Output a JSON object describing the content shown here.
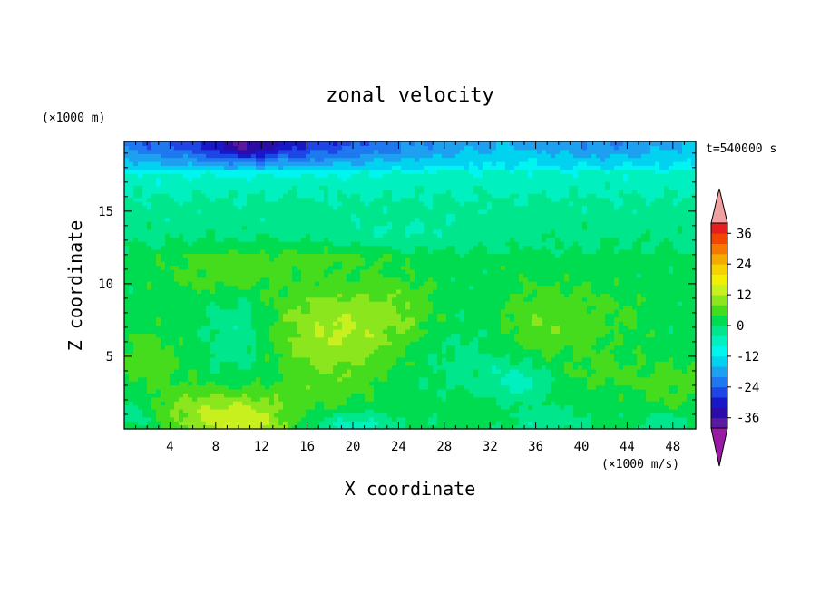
{
  "chart_data": {
    "type": "heatmap",
    "title": "zonal velocity",
    "xlabel": "X coordinate",
    "ylabel": "Z coordinate",
    "x_unit": "(×1000 m/s)",
    "y_unit": "(×1000 m)",
    "time_label": "t=540000 s",
    "xlim": [
      0,
      50
    ],
    "ylim": [
      0,
      19.8
    ],
    "x_ticks": [
      "4",
      "8",
      "12",
      "16",
      "20",
      "24",
      "28",
      "32",
      "36",
      "40",
      "44",
      "48"
    ],
    "y_ticks": [
      "5",
      "10",
      "15"
    ],
    "colorbar": {
      "tick_labels": [
        "36",
        "24",
        "12",
        "0",
        "-12",
        "-24",
        "-36"
      ],
      "tick_values": [
        36,
        24,
        12,
        0,
        -12,
        -24,
        -36
      ],
      "levels": [
        -40,
        -36,
        -32,
        -28,
        -24,
        -20,
        -16,
        -12,
        -8,
        -4,
        0,
        4,
        8,
        12,
        16,
        20,
        24,
        28,
        32,
        36,
        40
      ],
      "colors": [
        "#5a1aa0",
        "#2b0ca6",
        "#1818c8",
        "#1e46e6",
        "#1e78f0",
        "#1ea0f0",
        "#00d2f0",
        "#00f5f0",
        "#00f0c0",
        "#00e68c",
        "#00dc50",
        "#46dc1e",
        "#8ce61e",
        "#c8f01e",
        "#f0f000",
        "#f5d200",
        "#f5aa00",
        "#f57800",
        "#f04600",
        "#e61e1e"
      ],
      "over_color": "#f0a0a0",
      "under_color": "#9a1aa6"
    },
    "features": [
      {
        "kind": "jet",
        "x": 10,
        "z": 0.6,
        "rx": 4.5,
        "rz": 2.2,
        "value": 14
      },
      {
        "kind": "jet",
        "x": 18.5,
        "z": 6.8,
        "rx": 6,
        "rz": 3.2,
        "value": 11
      },
      {
        "kind": "jet",
        "x": 37,
        "z": 7.5,
        "rx": 5,
        "rz": 2.6,
        "value": 6
      },
      {
        "kind": "jet",
        "x": 9,
        "z": 10.5,
        "rx": 5,
        "rz": 1.5,
        "value": 5
      },
      {
        "kind": "jet",
        "x": 2,
        "z": 5,
        "rx": 3,
        "rz": 2,
        "value": 5
      },
      {
        "kind": "jet",
        "x": 18,
        "z": 2.5,
        "rx": 3,
        "rz": 1.5,
        "value": 3
      },
      {
        "kind": "jet",
        "x": 48,
        "z": 3,
        "rx": 4,
        "rz": 2,
        "value": 4
      },
      {
        "kind": "jet",
        "x": 14,
        "z": 12,
        "rx": 10,
        "rz": 1,
        "value": 3
      },
      {
        "kind": "jet",
        "x": 5,
        "z": 1.5,
        "rx": 3,
        "rz": 1.5,
        "value": 4
      },
      {
        "kind": "jet",
        "x": 42,
        "z": 4,
        "rx": 3,
        "rz": 1.5,
        "value": 3
      },
      {
        "kind": "jet",
        "x": 32,
        "z": 1.5,
        "rx": 5,
        "rz": 1,
        "value": 2
      },
      {
        "kind": "jet",
        "x": 25,
        "z": 8.5,
        "rx": 3,
        "rz": 2,
        "value": 4
      },
      {
        "kind": "jet",
        "x": 44,
        "z": 8,
        "rx": 3,
        "rz": 2,
        "value": 2
      },
      {
        "kind": "counter",
        "x": 10,
        "z": 6.5,
        "rx": 3,
        "rz": 4,
        "value": -5
      },
      {
        "kind": "counter",
        "x": 30,
        "z": 5,
        "rx": 4,
        "rz": 4,
        "value": -3
      },
      {
        "kind": "counter",
        "x": 34.5,
        "z": 3.2,
        "rx": 2.5,
        "rz": 1.5,
        "value": -7
      },
      {
        "kind": "counter",
        "x": 20,
        "z": 0.3,
        "rx": 3.5,
        "rz": 0.8,
        "value": -8
      },
      {
        "kind": "counter",
        "x": 37,
        "z": 0.5,
        "rx": 3,
        "rz": 1,
        "value": -5
      },
      {
        "kind": "counter",
        "x": 1,
        "z": 1,
        "rx": 1.5,
        "rz": 1,
        "value": -4
      },
      {
        "kind": "counter",
        "x": 47,
        "z": 0.5,
        "rx": 2,
        "rz": 0.8,
        "value": -5
      },
      {
        "kind": "counter",
        "x": 24,
        "z": 13.5,
        "rx": 8,
        "rz": 1,
        "value": -3
      },
      {
        "kind": "jet_stream_top",
        "x": 12,
        "z": 19.6,
        "rx": 14,
        "rz": 1.5,
        "value": -14
      },
      {
        "kind": "jet_stream_top",
        "x": 10.5,
        "z": 19.5,
        "rx": 3,
        "rz": 1,
        "value": -8
      },
      {
        "kind": "jet_stream_top",
        "x": 42,
        "z": 19.5,
        "rx": 6,
        "rz": 1.2,
        "value": -5
      }
    ]
  }
}
